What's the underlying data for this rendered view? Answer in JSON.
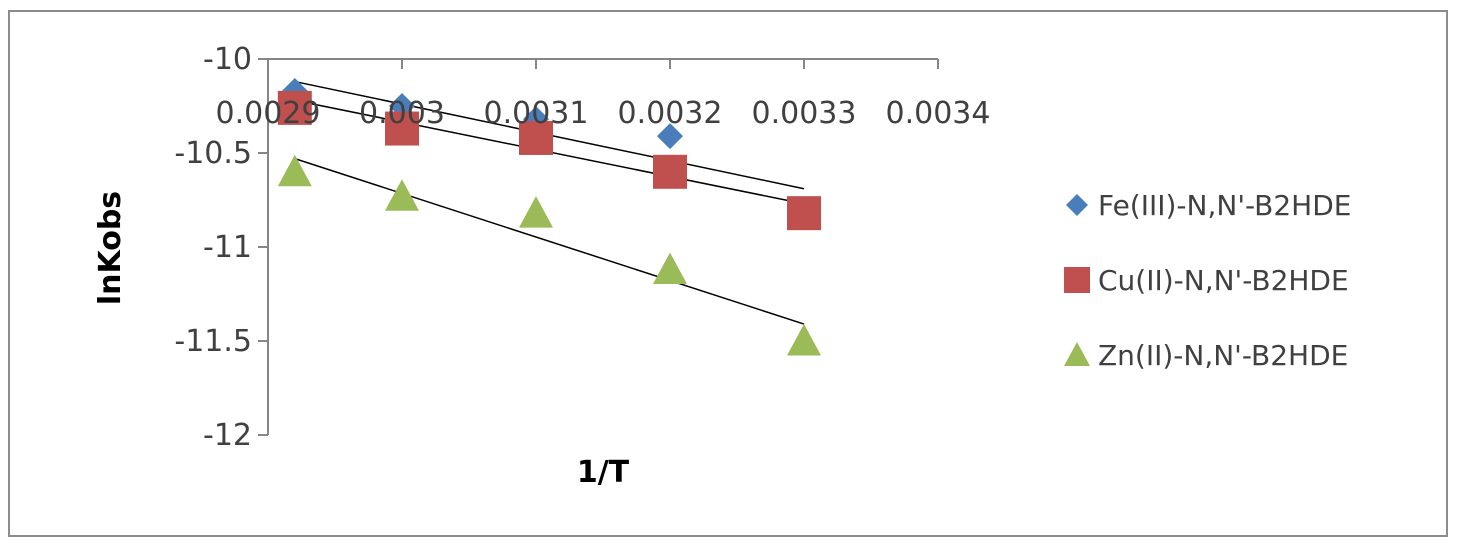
{
  "chart_data": {
    "type": "scatter",
    "xlabel": "1/T",
    "ylabel": "lnKobs",
    "xlim": [
      0.0029,
      0.0034
    ],
    "ylim": [
      -12,
      -10
    ],
    "x_ticks": [
      0.0029,
      0.003,
      0.0031,
      0.0032,
      0.0033,
      0.0034
    ],
    "x_tick_labels": [
      "0.0029",
      "0.003",
      "0.0031",
      "0.0032",
      "0.0033",
      "0.0034"
    ],
    "y_ticks": [
      -10,
      -10.5,
      -11,
      -11.5,
      -12
    ],
    "y_tick_labels": [
      "-10",
      "-10.5",
      "-11",
      "-11.5",
      "-12"
    ],
    "x_axis_crosses_at": -10,
    "grid": false,
    "legend_position": "right",
    "series": [
      {
        "name": "Fe(III)-N,N'-B2HDE",
        "marker": "diamond",
        "color": "#4a7ebb",
        "x": [
          0.00292,
          0.003,
          0.0031,
          0.0032
        ],
        "y": [
          -10.17,
          -10.25,
          -10.32,
          -10.41
        ],
        "trendline": {
          "x": [
            0.00292,
            0.0033
          ],
          "y": [
            -10.12,
            -10.69
          ]
        }
      },
      {
        "name": "Cu(II)-N,N'-B2HDE",
        "marker": "square",
        "color": "#c0504d",
        "x": [
          0.00292,
          0.003,
          0.0031,
          0.0032,
          0.0033
        ],
        "y": [
          -10.26,
          -10.37,
          -10.42,
          -10.6,
          -10.82
        ],
        "trendline": {
          "x": [
            0.00292,
            0.0033
          ],
          "y": [
            -10.22,
            -10.77
          ]
        }
      },
      {
        "name": "Zn(II)-N,N'-B2HDE",
        "marker": "triangle",
        "color": "#9bbb59",
        "x": [
          0.00292,
          0.003,
          0.0031,
          0.0032,
          0.0033
        ],
        "y": [
          -10.6,
          -10.73,
          -10.82,
          -11.12,
          -11.5
        ],
        "trendline": {
          "x": [
            0.00292,
            0.0033
          ],
          "y": [
            -10.53,
            -11.41
          ]
        }
      }
    ]
  },
  "colors": {
    "axis": "#868686",
    "trendline": "#000000",
    "frame": "#8c8c8c"
  }
}
